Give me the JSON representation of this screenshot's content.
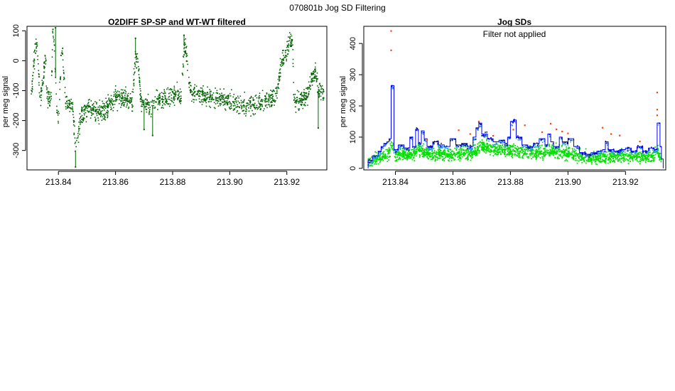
{
  "page_title": "070801b   Jog SD Filtering",
  "chart_data": [
    {
      "type": "scatter",
      "title": "O2DIFF SP-SP and WT-WT filtered",
      "xlabel": "",
      "ylabel": "per meg signal",
      "xlim": [
        213.829,
        213.934
      ],
      "ylim": [
        -365,
        115
      ],
      "x_ticks": [
        213.84,
        213.86,
        213.88,
        213.9,
        213.92
      ],
      "x_tick_labels": [
        "213.84",
        "213.86",
        "213.88",
        "213.90",
        "213.92"
      ],
      "y_ticks": [
        -300,
        -200,
        -100,
        0,
        100
      ],
      "y_tick_labels": [
        "-300",
        "-200",
        "-100",
        "0",
        "100"
      ],
      "grid": false,
      "series": [
        {
          "color": "#006400",
          "profile_x": [
            213.8305,
            213.832,
            213.8325,
            213.8335,
            213.834,
            213.8355,
            213.836,
            213.8375,
            213.838,
            213.8385,
            213.8395,
            213.84,
            213.841,
            213.8415,
            213.8425,
            213.843,
            213.8445,
            213.845,
            213.846,
            213.848,
            213.85,
            213.853,
            213.856,
            213.858,
            213.86,
            213.863,
            213.866,
            213.867,
            213.868,
            213.869,
            213.87,
            213.872,
            213.875,
            213.878,
            213.881,
            213.883,
            213.884,
            213.885,
            213.886,
            213.888,
            213.892,
            213.896,
            213.9,
            213.904,
            213.908,
            213.912,
            213.916,
            213.9185,
            213.9195,
            213.921,
            213.922,
            213.9225,
            213.9235,
            213.925,
            213.927,
            213.9285,
            213.93,
            213.931,
            213.932,
            213.933
          ],
          "profile_y": [
            -110,
            50,
            45,
            -120,
            -115,
            15,
            -120,
            -130,
            100,
            70,
            -180,
            -200,
            20,
            25,
            -130,
            -140,
            -150,
            -155,
            -300,
            -190,
            -160,
            -170,
            -170,
            -140,
            -130,
            -120,
            -140,
            20,
            -10,
            -150,
            -130,
            -160,
            -130,
            -130,
            -110,
            -130,
            50,
            20,
            -100,
            -110,
            -120,
            -125,
            -140,
            -150,
            -145,
            -135,
            -120,
            10,
            15,
            70,
            75,
            -140,
            -130,
            -130,
            -120,
            -60,
            -40,
            -100,
            -110,
            -110
          ],
          "noise_amplitude": 22,
          "spikes": [
            [
              213.846,
              -355
            ],
            [
              213.839,
              110
            ],
            [
              213.867,
              75
            ],
            [
              213.884,
              85
            ],
            [
              213.931,
              -225
            ],
            [
              213.87,
              -230
            ],
            [
              213.873,
              -250
            ]
          ]
        }
      ]
    },
    {
      "type": "line",
      "title": "Jog SDs",
      "annotation": "Filter not applied",
      "xlabel": "",
      "ylabel": "per meg signal",
      "xlim": [
        213.829,
        213.934
      ],
      "ylim": [
        -5,
        455
      ],
      "x_ticks": [
        213.84,
        213.86,
        213.88,
        213.9,
        213.92
      ],
      "x_tick_labels": [
        "213.84",
        "213.86",
        "213.88",
        "213.90",
        "213.92"
      ],
      "y_ticks": [
        0,
        100,
        200,
        300,
        400
      ],
      "y_tick_labels": [
        "0",
        "100",
        "200",
        "300",
        "400"
      ],
      "grid": false,
      "series": [
        {
          "type": "step",
          "color": "#0000ff",
          "x": [
            213.8305,
            213.832,
            213.834,
            213.835,
            213.836,
            213.837,
            213.8378,
            213.8385,
            213.8395,
            213.841,
            213.843,
            213.845,
            213.846,
            213.847,
            213.848,
            213.849,
            213.85,
            213.851,
            213.853,
            213.855,
            213.857,
            213.859,
            213.861,
            213.863,
            213.865,
            213.867,
            213.868,
            213.869,
            213.87,
            213.872,
            213.874,
            213.876,
            213.878,
            213.879,
            213.88,
            213.881,
            213.882,
            213.884,
            213.886,
            213.888,
            213.89,
            213.892,
            213.893,
            213.894,
            213.895,
            213.897,
            213.898,
            213.9,
            213.902,
            213.904,
            213.906,
            213.908,
            213.91,
            213.912,
            213.913,
            213.914,
            213.916,
            213.918,
            213.92,
            213.922,
            213.924,
            213.926,
            213.928,
            213.93,
            213.931,
            213.932,
            213.9325
          ],
          "y": [
            25,
            40,
            55,
            70,
            80,
            85,
            95,
            265,
            60,
            75,
            65,
            100,
            70,
            125,
            80,
            120,
            95,
            70,
            85,
            75,
            70,
            95,
            75,
            80,
            70,
            100,
            130,
            145,
            110,
            95,
            85,
            90,
            80,
            100,
            150,
            155,
            100,
            75,
            70,
            80,
            95,
            75,
            110,
            85,
            70,
            100,
            85,
            95,
            70,
            50,
            45,
            50,
            55,
            60,
            85,
            60,
            55,
            60,
            65,
            55,
            70,
            55,
            65,
            60,
            145,
            70,
            30
          ]
        },
        {
          "type": "scatter",
          "color": "#ff4500",
          "points": [
            [
              213.8385,
              440
            ],
            [
              213.8385,
              378
            ],
            [
              213.931,
              243
            ],
            [
              213.931,
              188
            ],
            [
              213.931,
              170
            ],
            [
              213.851,
              92
            ],
            [
              213.862,
              122
            ],
            [
              213.866,
              110
            ],
            [
              213.869,
              150
            ],
            [
              213.874,
              104
            ],
            [
              213.881,
              124
            ],
            [
              213.885,
              138
            ],
            [
              213.891,
              116
            ],
            [
              213.894,
              143
            ],
            [
              213.896,
              125
            ],
            [
              213.898,
              118
            ],
            [
              213.9,
              112
            ],
            [
              213.912,
              130
            ],
            [
              213.915,
              110
            ],
            [
              213.918,
              105
            ],
            [
              213.925,
              86
            ]
          ]
        },
        {
          "type": "scatter",
          "color": "#00e000",
          "profile_x": [
            213.8305,
            213.834,
            213.838,
            213.8385,
            213.84,
            213.845,
            213.848,
            213.852,
            213.856,
            213.86,
            213.864,
            213.868,
            213.87,
            213.874,
            213.878,
            213.882,
            213.886,
            213.89,
            213.894,
            213.898,
            213.902,
            213.906,
            213.91,
            213.914,
            213.918,
            213.922,
            213.926,
            213.93,
            213.931,
            213.9325
          ],
          "profile_y": [
            20,
            32,
            50,
            85,
            45,
            42,
            60,
            45,
            45,
            42,
            48,
            55,
            75,
            62,
            58,
            55,
            50,
            52,
            55,
            52,
            42,
            32,
            34,
            36,
            40,
            38,
            36,
            40,
            55,
            30
          ],
          "spread": 14
        },
        {
          "type": "scatter",
          "color": "#1e90ff",
          "follows": "step-profile",
          "offset": -6
        },
        {
          "type": "scatter",
          "color": "#000080",
          "follows": "step-profile",
          "offset": -2
        }
      ]
    }
  ]
}
